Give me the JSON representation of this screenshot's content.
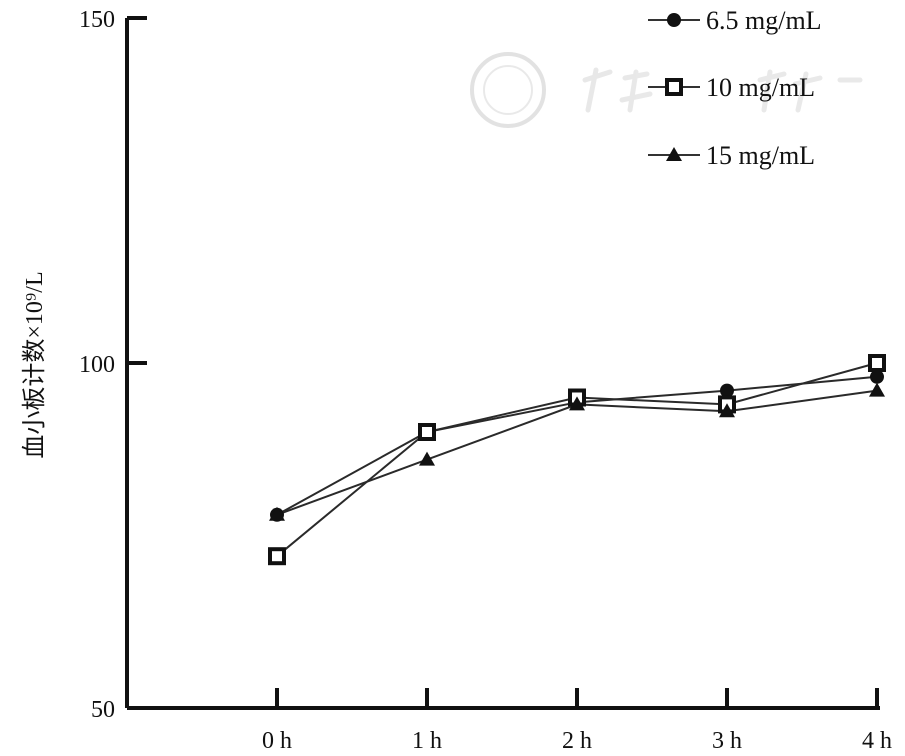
{
  "chart_data": {
    "type": "line",
    "title": "",
    "xlabel": "",
    "ylabel": "血小板计数×10⁹/L",
    "categories": [
      "0 h",
      "1 h",
      "2 h",
      "3 h",
      "4 h"
    ],
    "ylim": [
      50,
      150
    ],
    "yticks": [
      "50",
      "100",
      "150"
    ],
    "grid": false,
    "legend_position": "top-right",
    "series": [
      {
        "name": "6.5 mg/mL",
        "marker": "circle",
        "values": [
          78,
          90,
          94.3,
          96,
          98
        ]
      },
      {
        "name": "10 mg/mL",
        "marker": "square-open",
        "values": [
          72,
          90,
          95,
          94,
          100
        ]
      },
      {
        "name": "15 mg/mL",
        "marker": "triangle",
        "values": [
          78,
          86,
          94,
          93,
          96
        ]
      }
    ]
  },
  "watermark": {
    "text": "中华医学会"
  },
  "colors": {
    "ink": "#111111",
    "line": "#2a2a2a",
    "watermark": "#d8d8d8"
  }
}
